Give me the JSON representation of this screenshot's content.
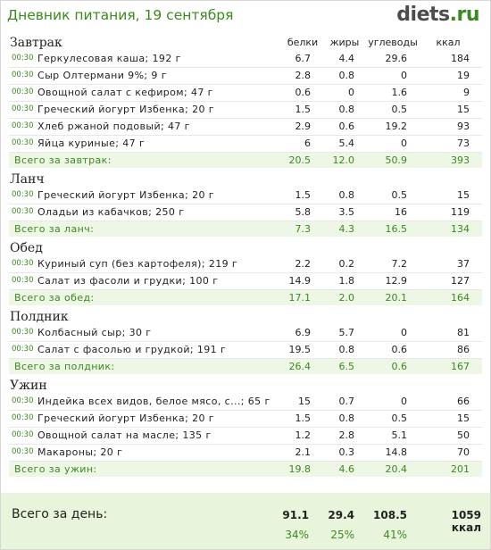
{
  "header": {
    "title": "Дневник питания, 19 сентября",
    "logo_main": "diets",
    "logo_tld": ".ru"
  },
  "columns": {
    "protein": "белки",
    "fat": "жиры",
    "carbs": "углеводы",
    "kcal": "ккал"
  },
  "meals": [
    {
      "name": "Завтрак",
      "items": [
        {
          "time": "00:30",
          "food": "Геркулесовая каша; 192 г",
          "protein": "6.7",
          "fat": "4.4",
          "carbs": "29.6",
          "kcal": "184"
        },
        {
          "time": "00:30",
          "food": "Сыр Олтермани 9%; 9 г",
          "protein": "2.8",
          "fat": "0.8",
          "carbs": "0",
          "kcal": "19"
        },
        {
          "time": "00:30",
          "food": "Овощной салат с кефиром; 47 г",
          "protein": "0.6",
          "fat": "0",
          "carbs": "1.6",
          "kcal": "9"
        },
        {
          "time": "00:30",
          "food": "Греческий йогурт Избенка; 20 г",
          "protein": "1.5",
          "fat": "0.8",
          "carbs": "0.5",
          "kcal": "15"
        },
        {
          "time": "00:30",
          "food": "Хлеб ржаной подовый; 47 г",
          "protein": "2.9",
          "fat": "0.6",
          "carbs": "19.2",
          "kcal": "93"
        },
        {
          "time": "00:30",
          "food": "Яйца куриные; 47 г",
          "protein": "6",
          "fat": "5.4",
          "carbs": "0",
          "kcal": "73"
        }
      ],
      "total": {
        "label": "Всего за завтрак:",
        "protein": "20.5",
        "fat": "12.0",
        "carbs": "50.9",
        "kcal": "393"
      }
    },
    {
      "name": "Ланч",
      "items": [
        {
          "time": "00:30",
          "food": "Греческий йогурт Избенка; 20 г",
          "protein": "1.5",
          "fat": "0.8",
          "carbs": "0.5",
          "kcal": "15"
        },
        {
          "time": "00:30",
          "food": "Оладьи из кабачков; 250 г",
          "protein": "5.8",
          "fat": "3.5",
          "carbs": "16",
          "kcal": "119"
        }
      ],
      "total": {
        "label": "Всего за ланч:",
        "protein": "7.3",
        "fat": "4.3",
        "carbs": "16.5",
        "kcal": "134"
      }
    },
    {
      "name": "Обед",
      "items": [
        {
          "time": "00:30",
          "food": "Куриный суп (без картофеля); 219 г",
          "protein": "2.2",
          "fat": "0.2",
          "carbs": "7.2",
          "kcal": "37"
        },
        {
          "time": "00:30",
          "food": "Салат из фасоли и грудки; 100 г",
          "protein": "14.9",
          "fat": "1.8",
          "carbs": "12.9",
          "kcal": "127"
        }
      ],
      "total": {
        "label": "Всего за обед:",
        "protein": "17.1",
        "fat": "2.0",
        "carbs": "20.1",
        "kcal": "164"
      }
    },
    {
      "name": "Полдник",
      "items": [
        {
          "time": "00:30",
          "food": "Колбасный сыр; 30 г",
          "protein": "6.9",
          "fat": "5.7",
          "carbs": "0",
          "kcal": "81"
        },
        {
          "time": "00:30",
          "food": "Салат с фасолью и грудкой; 191 г",
          "protein": "19.5",
          "fat": "0.8",
          "carbs": "0.6",
          "kcal": "86"
        }
      ],
      "total": {
        "label": "Всего за полдник:",
        "protein": "26.4",
        "fat": "6.5",
        "carbs": "0.6",
        "kcal": "167"
      }
    },
    {
      "name": "Ужин",
      "items": [
        {
          "time": "00:30",
          "food": "Индейка всех видов, белое мясо, с...; 65 г",
          "protein": "15",
          "fat": "0.7",
          "carbs": "0",
          "kcal": "66"
        },
        {
          "time": "00:30",
          "food": "Греческий йогурт Избенка; 20 г",
          "protein": "1.5",
          "fat": "0.8",
          "carbs": "0.5",
          "kcal": "15"
        },
        {
          "time": "00:30",
          "food": "Овощной салат на масле; 135 г",
          "protein": "1.2",
          "fat": "2.8",
          "carbs": "5.1",
          "kcal": "50"
        },
        {
          "time": "00:30",
          "food": "Макароны; 20 г",
          "protein": "2.1",
          "fat": "0.3",
          "carbs": "14.8",
          "kcal": "70"
        }
      ],
      "total": {
        "label": "Всего за ужин:",
        "protein": "19.8",
        "fat": "4.6",
        "carbs": "20.4",
        "kcal": "201"
      }
    }
  ],
  "day_total": {
    "label": "Всего за день:",
    "protein": "91.1",
    "fat": "29.4",
    "carbs": "108.5",
    "kcal": "1059 ккал",
    "protein_pct": "34%",
    "fat_pct": "25%",
    "carbs_pct": "41%"
  },
  "colors": {
    "accent": "#3a8a1e",
    "total_bg": "#eef6e6",
    "day_bg": "#e8f4dc"
  }
}
